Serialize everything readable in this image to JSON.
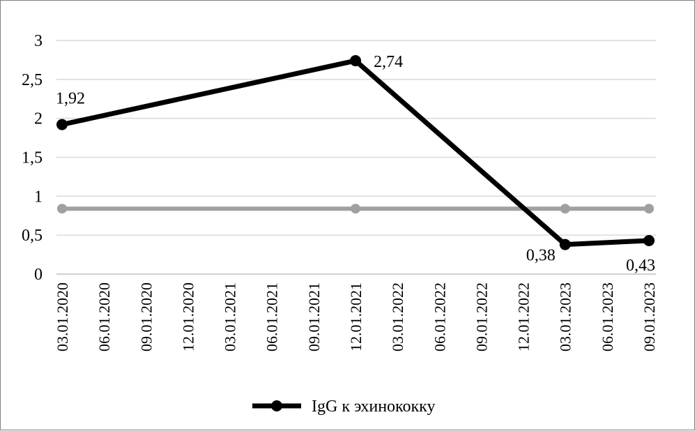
{
  "chart_data": {
    "type": "line",
    "title": "",
    "xlabel": "",
    "ylabel": "",
    "ylim": [
      0,
      3
    ],
    "y_ticks": [
      "0",
      "0,5",
      "1",
      "1,5",
      "2",
      "2,5",
      "3"
    ],
    "y_tick_values": [
      0,
      0.5,
      1,
      1.5,
      2,
      2.5,
      3
    ],
    "categories": [
      "03.01.2020",
      "06.01.2020",
      "09.01.2020",
      "12.01.2020",
      "03.01.2021",
      "06.01.2021",
      "09.01.2021",
      "12.01.2021",
      "03.01.2022",
      "06.01.2022",
      "09.01.2022",
      "12.01.2022",
      "03.01.2023",
      "06.01.2023",
      "09.01.2023"
    ],
    "grid": true,
    "legend_position": "bottom",
    "series": [
      {
        "name": "IgG к эхинококку",
        "color": "#000000",
        "points": [
          {
            "x": "03.01.2020",
            "y": 1.92,
            "label": "1,92",
            "label_pos": "above"
          },
          {
            "x": "12.01.2021",
            "y": 2.74,
            "label": "2,74",
            "label_pos": "right"
          },
          {
            "x": "03.01.2023",
            "y": 0.38,
            "label": "0,38",
            "label_pos": "left"
          },
          {
            "x": "09.01.2023",
            "y": 0.43,
            "label": "0,43",
            "label_pos": "below"
          }
        ]
      },
      {
        "color": "#a0a0a0",
        "points": [
          {
            "x": "03.01.2020",
            "y": 0.84
          },
          {
            "x": "12.01.2021",
            "y": 0.84
          },
          {
            "x": "03.01.2023",
            "y": 0.84
          },
          {
            "x": "09.01.2023",
            "y": 0.84
          }
        ]
      }
    ]
  }
}
